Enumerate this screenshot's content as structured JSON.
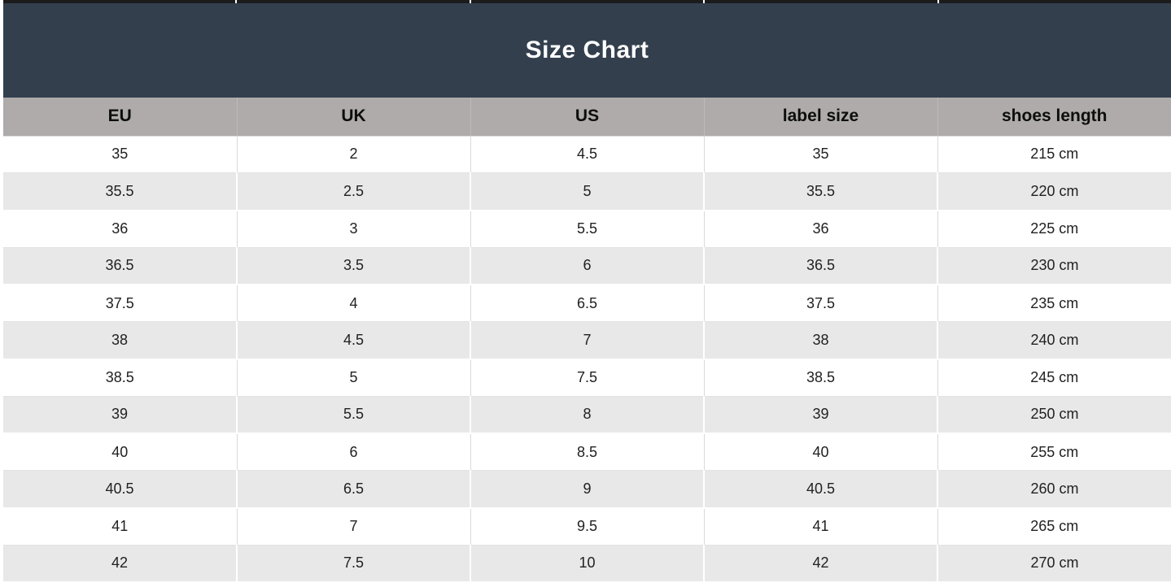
{
  "title": "Size Chart",
  "colors": {
    "title_band": "#333F4D",
    "title_text": "#FFFFFF",
    "header_row": "#AEABAA",
    "stripe_row": "#E9E8E8",
    "gridline": "#D9D9D9",
    "top_border": "#1C1C1C"
  },
  "chart_data": {
    "type": "table",
    "title": "Size Chart",
    "columns": [
      "EU",
      "UK",
      "US",
      "label size",
      "shoes length"
    ],
    "rows": [
      [
        "35",
        "2",
        "4.5",
        "35",
        "215 cm"
      ],
      [
        "35.5",
        "2.5",
        "5",
        "35.5",
        "220 cm"
      ],
      [
        "36",
        "3",
        "5.5",
        "36",
        "225 cm"
      ],
      [
        "36.5",
        "3.5",
        "6",
        "36.5",
        "230 cm"
      ],
      [
        "37.5",
        "4",
        "6.5",
        "37.5",
        "235 cm"
      ],
      [
        "38",
        "4.5",
        "7",
        "38",
        "240 cm"
      ],
      [
        "38.5",
        "5",
        "7.5",
        "38.5",
        "245 cm"
      ],
      [
        "39",
        "5.5",
        "8",
        "39",
        "250 cm"
      ],
      [
        "40",
        "6",
        "8.5",
        "40",
        "255 cm"
      ],
      [
        "40.5",
        "6.5",
        "9",
        "40.5",
        "260 cm"
      ],
      [
        "41",
        "7",
        "9.5",
        "41",
        "265 cm"
      ],
      [
        "42",
        "7.5",
        "10",
        "42",
        "270 cm"
      ]
    ],
    "layout": {
      "striped": true,
      "stripe_pattern": "even rows white, odd rows light gray",
      "column_alignment": "center"
    }
  }
}
